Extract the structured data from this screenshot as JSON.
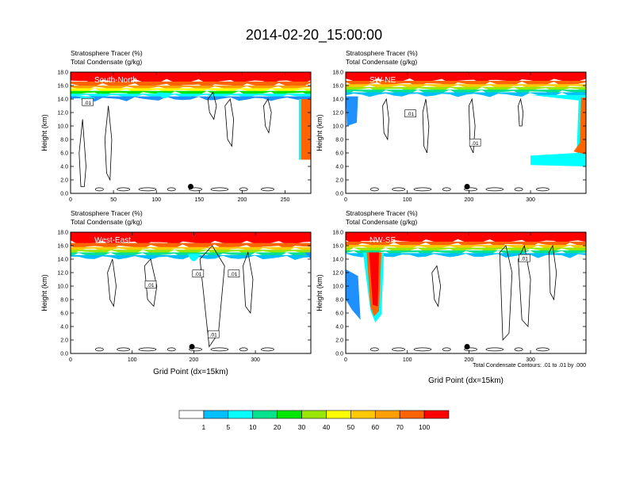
{
  "title": "2014-02-20_15:00:00",
  "chart_data": [
    {
      "type": "contour",
      "panel_label": "South-North",
      "header_lines": [
        "Stratosphere Tracer   (%)",
        "Total Condensate   (g/kg)"
      ],
      "ylabel": "Height (km)",
      "xlabel": "",
      "ylim": [
        0,
        18
      ],
      "y_ticks": [
        "0.0",
        "2.0",
        "4.0",
        "6.0",
        "8.0",
        "10.0",
        "12.0",
        "14.0",
        "16.0",
        "18.0"
      ],
      "xlim": [
        0,
        280
      ],
      "x_ticks": [
        0,
        50,
        100,
        150,
        200,
        250
      ],
      "contour_labels": [
        ".01"
      ],
      "marker_x": 140,
      "tracer_top_km": 16.2,
      "tracer_transition_km": 14.2
    },
    {
      "type": "contour",
      "panel_label": "SW-NE",
      "header_lines": [
        "Stratosphere Tracer   (%)",
        "Total Condensate   (g/kg)"
      ],
      "ylabel": "Height (km)",
      "xlabel": "",
      "ylim": [
        0,
        18
      ],
      "y_ticks": [
        "0.0",
        "2.0",
        "4.0",
        "6.0",
        "8.0",
        "10.0",
        "12.0",
        "14.0",
        "16.0",
        "18.0"
      ],
      "xlim": [
        0,
        390
      ],
      "x_ticks": [
        0,
        100,
        200,
        300
      ],
      "contour_labels": [
        ".01",
        ".01"
      ],
      "marker_x": 197,
      "tracer_top_km": 16.5,
      "tracer_transition_km": 14.5
    },
    {
      "type": "contour",
      "panel_label": "West-East",
      "header_lines": [
        "Stratosphere Tracer   (%)",
        "Total Condensate   (g/kg)"
      ],
      "ylabel": "Height (km)",
      "xlabel": "Grid Point (dx=15km)",
      "ylim": [
        0,
        18
      ],
      "y_ticks": [
        "0.0",
        "2.0",
        "4.0",
        "6.0",
        "8.0",
        "10.0",
        "12.0",
        "14.0",
        "16.0",
        "18.0"
      ],
      "xlim": [
        0,
        390
      ],
      "x_ticks": [
        0,
        100,
        200,
        300
      ],
      "contour_labels": [
        ".01",
        ".01",
        ".01",
        ".01"
      ],
      "marker_x": 197,
      "tracer_top_km": 16.2,
      "tracer_transition_km": 14.3
    },
    {
      "type": "contour",
      "panel_label": "NW-SE",
      "header_lines": [
        "Stratosphere Tracer   (%)",
        "Total Condensate   (g/kg)"
      ],
      "ylabel": "Height (km)",
      "xlabel": "Grid Point (dx=15km)",
      "ylim": [
        0,
        18
      ],
      "y_ticks": [
        "0.0",
        "2.0",
        "4.0",
        "6.0",
        "8.0",
        "10.0",
        "12.0",
        "14.0",
        "16.0",
        "18.0"
      ],
      "xlim": [
        0,
        390
      ],
      "x_ticks": [
        0,
        100,
        200,
        300
      ],
      "contour_labels": [
        ".01"
      ],
      "marker_x": 197,
      "tracer_top_km": 16.3,
      "tracer_transition_km": 14.5,
      "footnote": "Total Condensate Contours: .01 to .01 by .000"
    }
  ],
  "colorbar": {
    "levels": [
      "1",
      "5",
      "10",
      "20",
      "30",
      "40",
      "50",
      "60",
      "70",
      "100"
    ],
    "colors": [
      "#ffffff",
      "#1e90ff",
      "#00bfff",
      "#00ffff",
      "#00e38c",
      "#00e600",
      "#9be600",
      "#ffff00",
      "#ffc800",
      "#ffa000",
      "#ff6400",
      "#ff0000"
    ]
  }
}
